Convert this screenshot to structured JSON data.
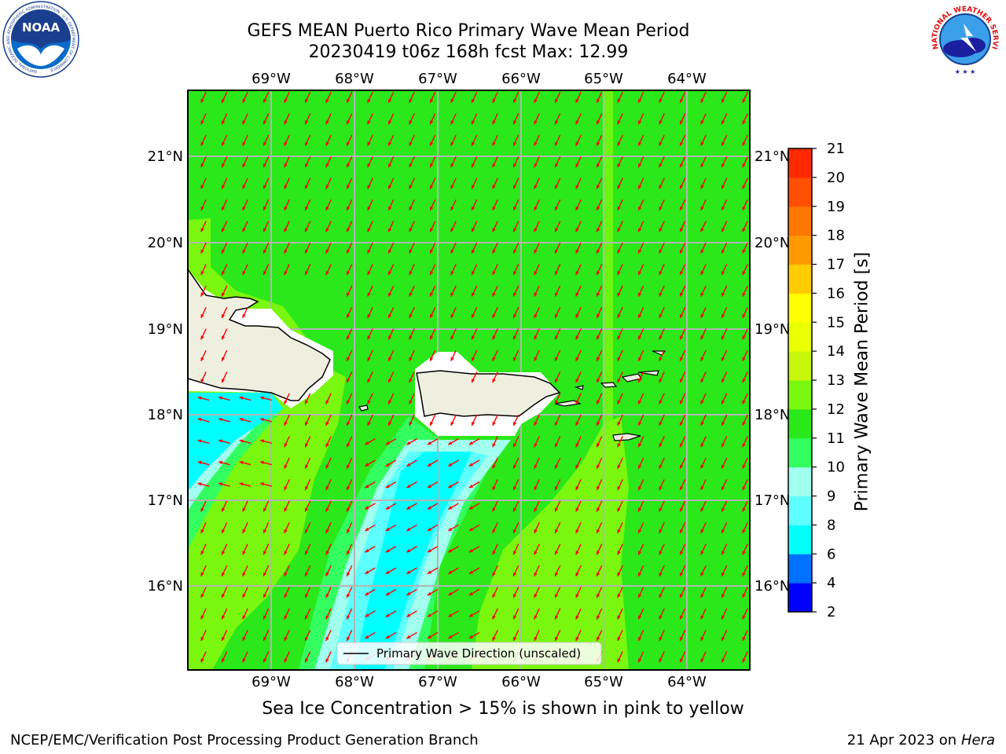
{
  "header": {
    "title_line1": "GEFS MEAN Puerto Rico Primary Wave Mean Period",
    "title_line2": "20230419 t06z 168h fcst   Max: 12.99"
  },
  "logos": {
    "noaa_text": "NOAA",
    "noaa_ring_text": "NATIONAL OCEANIC AND ATMOSPHERIC ADMINISTRATION · U.S. DEPARTMENT OF COMMERCE",
    "nws_ring_text": "NATIONAL WEATHER SERVICE"
  },
  "map": {
    "lon_labels": [
      "69°W",
      "68°W",
      "67°W",
      "66°W",
      "65°W",
      "64°W"
    ],
    "lat_labels": [
      "21°N",
      "20°N",
      "19°N",
      "18°N",
      "17°N",
      "16°N"
    ],
    "legend_label": "Primary Wave Direction (unscaled)",
    "arrow_color": "#ff0000"
  },
  "colorbar": {
    "label": "Primary Wave Mean Period [s]",
    "ticks": [
      "2",
      "4",
      "6",
      "8",
      "9",
      "10",
      "11",
      "12",
      "13",
      "14",
      "15",
      "16",
      "17",
      "18",
      "19",
      "20",
      "21"
    ],
    "colors": [
      "#0000ff",
      "#0070ff",
      "#00ffff",
      "#5effff",
      "#a0ffee",
      "#33ff60",
      "#2ae81a",
      "#7af70f",
      "#c7f70a",
      "#eaff00",
      "#ffff00",
      "#ffcc00",
      "#ff9900",
      "#ff7700",
      "#ff4f00",
      "#ff2a00",
      "#ff0000"
    ]
  },
  "colors": {
    "land": "#efefe0",
    "ocean_base": "#2ae81a"
  },
  "subtitle": "Sea Ice Concentration > 15% is shown in pink to yellow",
  "footer": {
    "left": "NCEP/EMC/Verification Post Processing Product Generation Branch",
    "right_prefix": "21 Apr 2023 on ",
    "right_host": "Hera"
  }
}
